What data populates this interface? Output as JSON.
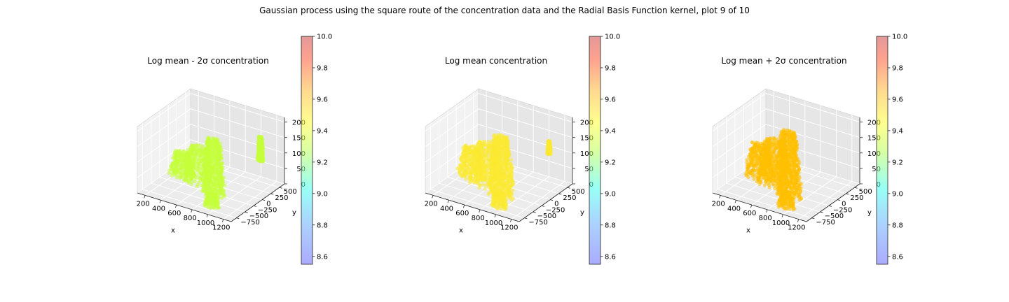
{
  "figure": {
    "suptitle": "Gaussian process using the square route of the concentration data and the Radial Basis Function kernel, plot 9 of 10"
  },
  "chart_data": [
    {
      "type": "scatter",
      "subtype": "3d-scatter",
      "title": "Log mean - 2σ concentration",
      "xlabel": "x",
      "ylabel": "y",
      "zlabel": "",
      "x_ticks": [
        200,
        400,
        600,
        800,
        1000,
        1200
      ],
      "y_ticks": [
        -750,
        -500,
        -250,
        0,
        250,
        500
      ],
      "z_ticks": [
        0,
        50,
        100,
        150,
        200
      ],
      "xlim": [
        100,
        1300
      ],
      "ylim": [
        -900,
        650
      ],
      "zlim": [
        0,
        215
      ],
      "point_color": "#c5ff3a",
      "point_value": 9.32,
      "blobs": [
        {
          "cx": 370,
          "cy": -200,
          "rx": 170,
          "ry": 120,
          "zlo": 20,
          "zhi": 95
        },
        {
          "cx": 620,
          "cy": -300,
          "rx": 220,
          "ry": 170,
          "zlo": 30,
          "zhi": 140
        },
        {
          "cx": 830,
          "cy": -350,
          "rx": 150,
          "ry": 130,
          "zlo": 10,
          "zhi": 185
        },
        {
          "cx": 930,
          "cy": -620,
          "rx": 95,
          "ry": 90,
          "zlo": 0,
          "zhi": 40
        },
        {
          "cx": 1080,
          "cy": 450,
          "rx": 40,
          "ry": 35,
          "zlo": 75,
          "zhi": 150
        }
      ],
      "colorbar": {
        "vmin": 8.55,
        "vmax": 10.0,
        "ticks": [
          8.6,
          8.8,
          9.0,
          9.2,
          9.4,
          9.6,
          9.8,
          10.0
        ]
      }
    },
    {
      "type": "scatter",
      "subtype": "3d-scatter",
      "title": "Log mean concentration",
      "xlabel": "x",
      "ylabel": "y",
      "zlabel": "",
      "x_ticks": [
        200,
        400,
        600,
        800,
        1000,
        1200
      ],
      "y_ticks": [
        -750,
        -500,
        -250,
        0,
        250,
        500
      ],
      "z_ticks": [
        0,
        50,
        100,
        150,
        200
      ],
      "xlim": [
        100,
        1300
      ],
      "ylim": [
        -900,
        650
      ],
      "zlim": [
        0,
        215
      ],
      "point_color": "#fbe931",
      "point_value": 9.52,
      "blobs": [
        {
          "cx": 380,
          "cy": -180,
          "rx": 190,
          "ry": 130,
          "zlo": 15,
          "zhi": 110
        },
        {
          "cx": 620,
          "cy": -280,
          "rx": 230,
          "ry": 180,
          "zlo": 20,
          "zhi": 150
        },
        {
          "cx": 830,
          "cy": -360,
          "rx": 160,
          "ry": 140,
          "zlo": 5,
          "zhi": 195
        },
        {
          "cx": 930,
          "cy": -640,
          "rx": 100,
          "ry": 95,
          "zlo": 0,
          "zhi": 45
        },
        {
          "cx": 1080,
          "cy": 470,
          "rx": 25,
          "ry": 25,
          "zlo": 95,
          "zhi": 135
        }
      ],
      "colorbar": {
        "vmin": 8.55,
        "vmax": 10.0,
        "ticks": [
          8.6,
          8.8,
          9.0,
          9.2,
          9.4,
          9.6,
          9.8,
          10.0
        ]
      }
    },
    {
      "type": "scatter",
      "subtype": "3d-scatter",
      "title": "Log mean + 2σ concentration",
      "xlabel": "x",
      "ylabel": "y",
      "zlabel": "",
      "x_ticks": [
        200,
        400,
        600,
        800,
        1000,
        1200
      ],
      "y_ticks": [
        -750,
        -500,
        -250,
        0,
        250,
        500
      ],
      "z_ticks": [
        0,
        50,
        100,
        150,
        200
      ],
      "xlim": [
        100,
        1300
      ],
      "ylim": [
        -900,
        650
      ],
      "zlim": [
        0,
        215
      ],
      "point_color": "#ffbf00",
      "point_value": 9.72,
      "blobs": [
        {
          "cx": 390,
          "cy": -170,
          "rx": 200,
          "ry": 140,
          "zlo": 15,
          "zhi": 120
        },
        {
          "cx": 620,
          "cy": -270,
          "rx": 235,
          "ry": 185,
          "zlo": 20,
          "zhi": 160
        },
        {
          "cx": 830,
          "cy": -360,
          "rx": 165,
          "ry": 145,
          "zlo": 5,
          "zhi": 210
        },
        {
          "cx": 930,
          "cy": -650,
          "rx": 105,
          "ry": 100,
          "zlo": 0,
          "zhi": 45
        }
      ],
      "colorbar": {
        "vmin": 8.55,
        "vmax": 10.0,
        "ticks": [
          8.6,
          8.8,
          9.0,
          9.2,
          9.4,
          9.6,
          9.8,
          10.0
        ]
      }
    }
  ]
}
